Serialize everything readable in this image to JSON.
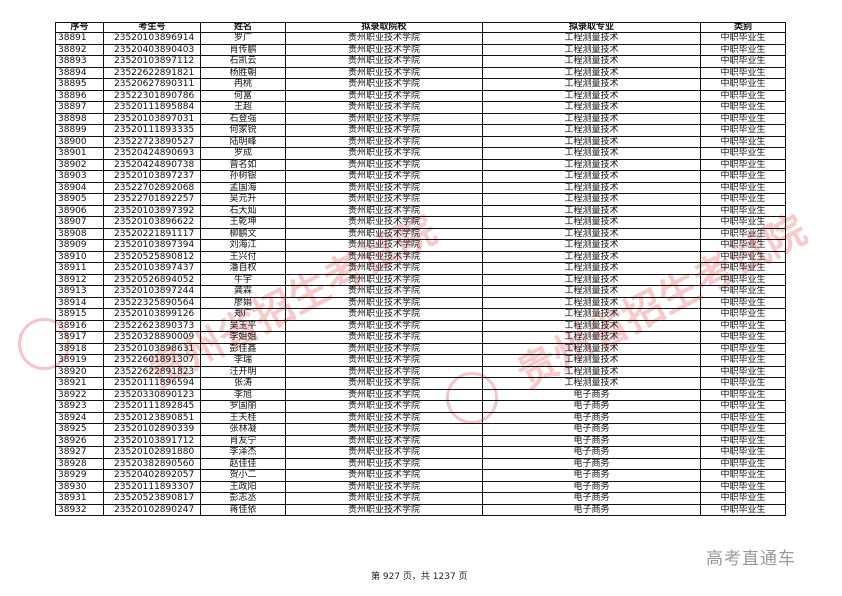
{
  "headers": [
    "序号",
    "考生号",
    "姓名",
    "拟录取院校",
    "拟录取专业",
    "类别"
  ],
  "school": "贵州职业技术学院",
  "category": "中职毕业生",
  "rows": [
    {
      "seq": "38891",
      "id": "23520103896914",
      "name": "罗广",
      "major": "工程测量技术"
    },
    {
      "seq": "38892",
      "id": "23520403890403",
      "name": "肖传鹏",
      "major": "工程测量技术"
    },
    {
      "seq": "38893",
      "id": "23520103897112",
      "name": "石凯云",
      "major": "工程测量技术"
    },
    {
      "seq": "38894",
      "id": "23522622891821",
      "name": "杨胜朝",
      "major": "工程测量技术"
    },
    {
      "seq": "38895",
      "id": "23520627890311",
      "name": "冉桃",
      "major": "工程测量技术"
    },
    {
      "seq": "38896",
      "id": "23522301890786",
      "name": "何富",
      "major": "工程测量技术"
    },
    {
      "seq": "38897",
      "id": "23520111895884",
      "name": "王超",
      "major": "工程测量技术"
    },
    {
      "seq": "38898",
      "id": "23520103897031",
      "name": "石登强",
      "major": "工程测量技术"
    },
    {
      "seq": "38899",
      "id": "23520111893335",
      "name": "何家锐",
      "major": "工程测量技术"
    },
    {
      "seq": "38900",
      "id": "23522723890527",
      "name": "陆明峰",
      "major": "工程测量技术"
    },
    {
      "seq": "38901",
      "id": "23520424890693",
      "name": "罗成",
      "major": "工程测量技术"
    },
    {
      "seq": "38902",
      "id": "23520424890738",
      "name": "曾名如",
      "major": "工程测量技术"
    },
    {
      "seq": "38903",
      "id": "23520103897237",
      "name": "孙树银",
      "major": "工程测量技术"
    },
    {
      "seq": "38904",
      "id": "23522702892068",
      "name": "孟国海",
      "major": "工程测量技术"
    },
    {
      "seq": "38905",
      "id": "23522701892257",
      "name": "吴元升",
      "major": "工程测量技术"
    },
    {
      "seq": "38906",
      "id": "23520103897392",
      "name": "石大灿",
      "major": "工程测量技术"
    },
    {
      "seq": "38907",
      "id": "23520103896622",
      "name": "王乾坤",
      "major": "工程测量技术"
    },
    {
      "seq": "38908",
      "id": "23520221891117",
      "name": "柳鹏文",
      "major": "工程测量技术"
    },
    {
      "seq": "38909",
      "id": "23520103897394",
      "name": "刘海江",
      "major": "工程测量技术"
    },
    {
      "seq": "38910",
      "id": "23520525890812",
      "name": "王兴付",
      "major": "工程测量技术"
    },
    {
      "seq": "38911",
      "id": "23520103897437",
      "name": "潘自权",
      "major": "工程测量技术"
    },
    {
      "seq": "38912",
      "id": "23520526894052",
      "name": "牛宇",
      "major": "工程测量技术"
    },
    {
      "seq": "38913",
      "id": "23520103897244",
      "name": "龚霖",
      "major": "工程测量技术"
    },
    {
      "seq": "38914",
      "id": "23522325890564",
      "name": "廖娟",
      "major": "工程测量技术"
    },
    {
      "seq": "38915",
      "id": "23520103899126",
      "name": "郑广",
      "major": "工程测量技术"
    },
    {
      "seq": "38916",
      "id": "23522623890373",
      "name": "吴玉平",
      "major": "工程测量技术"
    },
    {
      "seq": "38917",
      "id": "23520328890009",
      "name": "李姐姐",
      "major": "工程测量技术"
    },
    {
      "seq": "38918",
      "id": "23520103898631",
      "name": "彭佳鑫",
      "major": "工程测量技术"
    },
    {
      "seq": "38919",
      "id": "23522601891307",
      "name": "李瑞",
      "major": "工程测量技术"
    },
    {
      "seq": "38920",
      "id": "23522622891823",
      "name": "汪开明",
      "major": "工程测量技术"
    },
    {
      "seq": "38921",
      "id": "23520111896594",
      "name": "张涛",
      "major": "工程测量技术"
    },
    {
      "seq": "38922",
      "id": "23520330890123",
      "name": "李旭",
      "major": "电子商务"
    },
    {
      "seq": "38923",
      "id": "23520111892845",
      "name": "罗国丽",
      "major": "电子商务"
    },
    {
      "seq": "38924",
      "id": "23520123890851",
      "name": "王天桂",
      "major": "电子商务"
    },
    {
      "seq": "38925",
      "id": "23520102890339",
      "name": "张林凝",
      "major": "电子商务"
    },
    {
      "seq": "38926",
      "id": "23520103891712",
      "name": "肖友宁",
      "major": "电子商务"
    },
    {
      "seq": "38927",
      "id": "23520102891880",
      "name": "李泽杰",
      "major": "电子商务"
    },
    {
      "seq": "38928",
      "id": "23520382890560",
      "name": "赵佳佳",
      "major": "电子商务"
    },
    {
      "seq": "38929",
      "id": "23520402892057",
      "name": "贺小二",
      "major": "电子商务"
    },
    {
      "seq": "38930",
      "id": "23520111893307",
      "name": "王政阳",
      "major": "电子商务"
    },
    {
      "seq": "38931",
      "id": "23520523890817",
      "name": "彭志丞",
      "major": "电子商务"
    },
    {
      "seq": "38932",
      "id": "23520102890247",
      "name": "蒋佳依",
      "major": "电子商务"
    }
  ],
  "footer": "第 927 页，共 1237 页",
  "watermarks": {
    "stamp": "贵州省招生考试院",
    "brand": "高考直通车"
  }
}
